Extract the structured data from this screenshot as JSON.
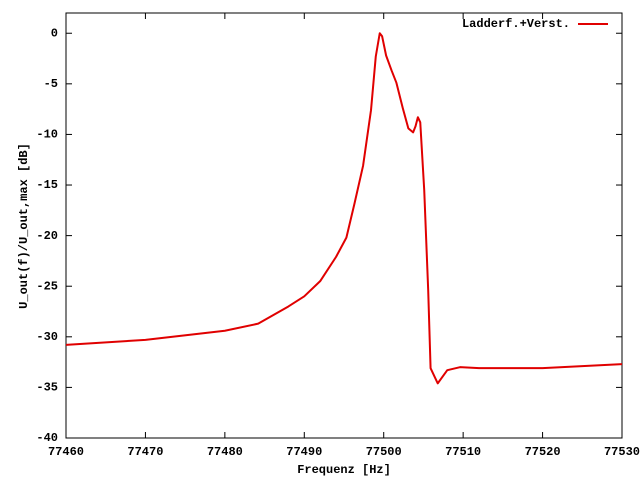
{
  "chart_data": {
    "type": "line",
    "xlabel": "Frequenz [Hz]",
    "ylabel": "U_out(f)/U_out,max [dB]",
    "x": [
      77460,
      77470,
      77480,
      77484.2,
      77488,
      77490,
      77492,
      77494,
      77495.3,
      77496.3,
      77497.4,
      77498.4,
      77499,
      77499.5,
      77499.8,
      77500.3,
      77501,
      77501.6,
      77502.4,
      77503.1,
      77503.7,
      77504,
      77504.3,
      77504.6,
      77505.1,
      77505.6,
      77505.9,
      77506.8,
      77508,
      77509.6,
      77512,
      77520,
      77530
    ],
    "series": [
      {
        "name": "Ladderf.+Verst.",
        "color": "#e00000",
        "values": [
          -30.8,
          -30.3,
          -29.4,
          -28.7,
          -27.0,
          -26.0,
          -24.5,
          -22.1,
          -20.2,
          -16.9,
          -13.1,
          -7.6,
          -2.3,
          0,
          -0.3,
          -2.2,
          -3.7,
          -4.9,
          -7.4,
          -9.4,
          -9.8,
          -9.2,
          -8.3,
          -8.8,
          -15.5,
          -25.4,
          -33.1,
          -34.6,
          -33.3,
          -33.0,
          -33.1,
          -33.1,
          -32.7
        ]
      }
    ],
    "xlim": [
      77460,
      77530
    ],
    "xticks": [
      77460,
      77470,
      77480,
      77490,
      77500,
      77510,
      77520,
      77530
    ],
    "ylim": [
      -40,
      2
    ],
    "yticks": [
      0,
      -5,
      -10,
      -15,
      -20,
      -25,
      -30,
      -35,
      -40
    ],
    "legend": "top-right"
  }
}
